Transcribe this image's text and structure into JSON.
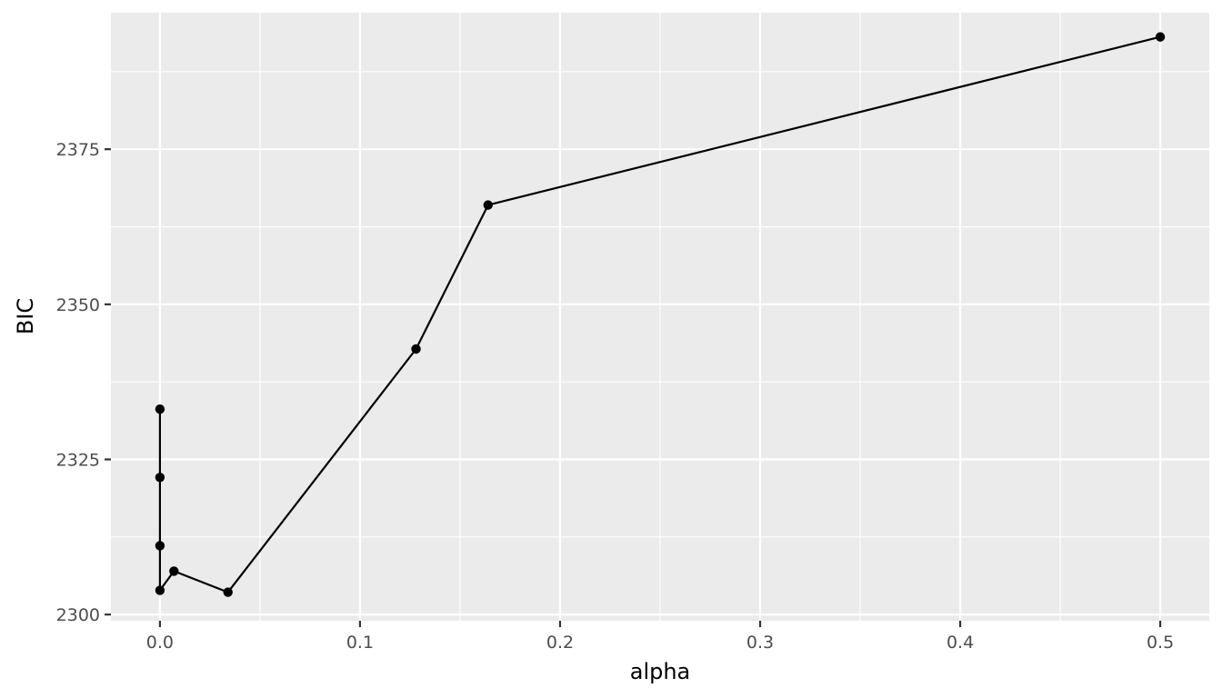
{
  "chart_data": {
    "type": "line",
    "title": "",
    "xlabel": "alpha",
    "ylabel": "BIC",
    "xlim": [
      -0.0245,
      0.5245
    ],
    "ylim": [
      2299.0,
      2397.0
    ],
    "x_ticks": [
      0.0,
      0.1,
      0.2,
      0.3,
      0.4,
      0.5
    ],
    "x_tick_labels": [
      "0.0",
      "0.1",
      "0.2",
      "0.3",
      "0.4",
      "0.5"
    ],
    "y_ticks": [
      2300,
      2325,
      2350,
      2375
    ],
    "y_tick_labels": [
      "2300",
      "2325",
      "2350",
      "2375"
    ],
    "grid": true,
    "legend": "none",
    "series": [
      {
        "color": "#000000",
        "points": [
          {
            "x": 0.0,
            "y": 2333.1
          },
          {
            "x": 0.0,
            "y": 2322.1
          },
          {
            "x": 0.0,
            "y": 2311.1
          },
          {
            "x": 0.0,
            "y": 2303.9
          },
          {
            "x": 0.007,
            "y": 2307.0
          },
          {
            "x": 0.034,
            "y": 2303.6
          },
          {
            "x": 0.128,
            "y": 2342.8
          },
          {
            "x": 0.164,
            "y": 2366.0
          },
          {
            "x": 0.5,
            "y": 2393.1
          }
        ]
      }
    ],
    "panel_background": "#ebebeb",
    "grid_color": "#ffffff"
  }
}
